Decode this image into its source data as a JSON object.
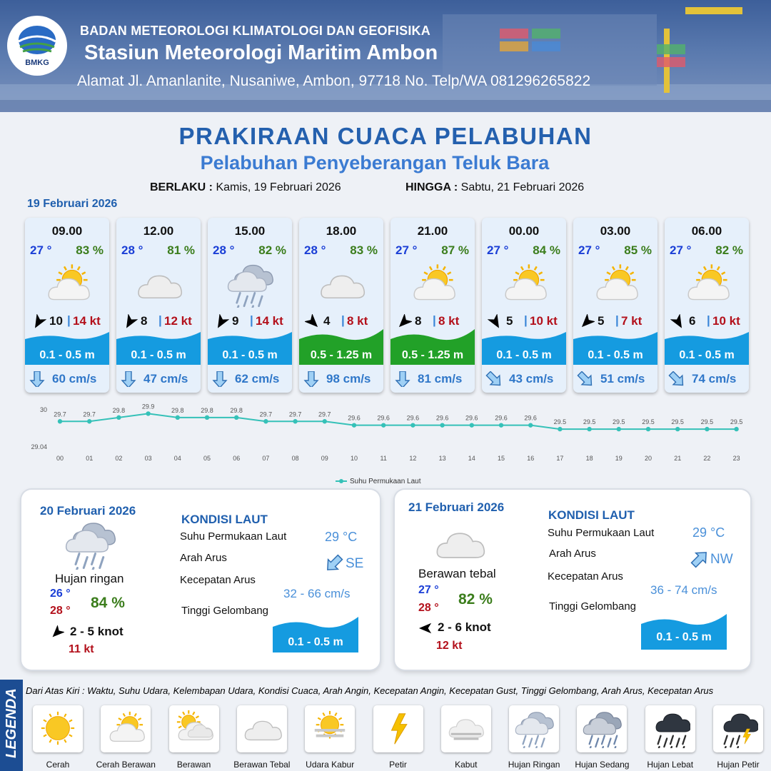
{
  "header": {
    "logo_text": "BMKG",
    "organization": "BADAN METEOROLOGI KLIMATOLOGI DAN GEOFISIKA",
    "station": "Stasiun Meteorologi Maritim Ambon",
    "address": "Alamat Jl. Amanlanite, Nusaniwe, Ambon, 97718   No. Telp/WA  081296265822"
  },
  "title": "PRAKIRAAN CUACA PELABUHAN",
  "subtitle": "Pelabuhan Penyeberangan Teluk Bara",
  "validity": {
    "from_label": "BERLAKU :",
    "from_value": "Kamis, 19 Februari 2026",
    "to_label": "HINGGA :",
    "to_value": "Sabtu, 21 Februari 2026"
  },
  "day1_date": "19 Februari 2026",
  "cards": [
    {
      "time": "09.00",
      "temp": "27 °",
      "humidity": "83 %",
      "icon": "cerah-berawan-icon",
      "wind_dir_deg": 120,
      "wind_speed": "10",
      "gust": "14 kt",
      "wave": "0.1 - 0.5 m",
      "wave_level": "low",
      "current_dir_deg": 90,
      "current_speed": "60 cm/s"
    },
    {
      "time": "12.00",
      "temp": "28 °",
      "humidity": "81 %",
      "icon": "berawan-tebal-icon",
      "wind_dir_deg": 120,
      "wind_speed": "8",
      "gust": "12 kt",
      "wave": "0.1 - 0.5 m",
      "wave_level": "low",
      "current_dir_deg": 90,
      "current_speed": "47 cm/s"
    },
    {
      "time": "15.00",
      "temp": "28 °",
      "humidity": "82 %",
      "icon": "hujan-ringan-icon",
      "wind_dir_deg": 120,
      "wind_speed": "9",
      "gust": "14 kt",
      "wave": "0.1 - 0.5 m",
      "wave_level": "low",
      "current_dir_deg": 90,
      "current_speed": "62 cm/s"
    },
    {
      "time": "18.00",
      "temp": "28 °",
      "humidity": "83 %",
      "icon": "berawan-tebal-icon",
      "wind_dir_deg": 45,
      "wind_speed": "4",
      "gust": "8 kt",
      "wave": "0.5 - 1.25 m",
      "wave_level": "moderate",
      "current_dir_deg": 90,
      "current_speed": "98 cm/s"
    },
    {
      "time": "21.00",
      "temp": "27 °",
      "humidity": "87 %",
      "icon": "cerah-berawan-icon",
      "wind_dir_deg": 135,
      "wind_speed": "8",
      "gust": "8 kt",
      "wave": "0.5 - 1.25 m",
      "wave_level": "moderate",
      "current_dir_deg": 90,
      "current_speed": "81 cm/s"
    },
    {
      "time": "00.00",
      "temp": "27 °",
      "humidity": "84 %",
      "icon": "cerah-berawan-icon",
      "wind_dir_deg": 60,
      "wind_speed": "5",
      "gust": "10 kt",
      "wave": "0.1 - 0.5 m",
      "wave_level": "low",
      "current_dir_deg": 45,
      "current_speed": "43 cm/s"
    },
    {
      "time": "03.00",
      "temp": "27 °",
      "humidity": "85 %",
      "icon": "cerah-berawan-icon",
      "wind_dir_deg": 135,
      "wind_speed": "5",
      "gust": "7 kt",
      "wave": "0.1 - 0.5 m",
      "wave_level": "low",
      "current_dir_deg": 45,
      "current_speed": "51 cm/s"
    },
    {
      "time": "06.00",
      "temp": "27 °",
      "humidity": "82 %",
      "icon": "cerah-berawan-icon",
      "wind_dir_deg": 60,
      "wind_speed": "6",
      "gust": "10 kt",
      "wave": "0.1 - 0.5 m",
      "wave_level": "low",
      "current_dir_deg": 45,
      "current_speed": "74 cm/s"
    }
  ],
  "chart_data": {
    "type": "line",
    "title": "",
    "xlabel": "",
    "ylabel": "",
    "x": [
      "00",
      "01",
      "02",
      "03",
      "04",
      "05",
      "06",
      "07",
      "08",
      "09",
      "10",
      "11",
      "12",
      "13",
      "14",
      "15",
      "16",
      "17",
      "18",
      "19",
      "20",
      "21",
      "22",
      "23"
    ],
    "series": [
      {
        "name": "Suhu Permukaan Laut",
        "values": [
          29.7,
          29.7,
          29.8,
          29.9,
          29.8,
          29.8,
          29.8,
          29.7,
          29.7,
          29.7,
          29.6,
          29.6,
          29.6,
          29.6,
          29.6,
          29.6,
          29.6,
          29.5,
          29.5,
          29.5,
          29.5,
          29.5,
          29.5,
          29.5
        ],
        "labels": [
          "29.7",
          "29.7",
          "29.8",
          "29.9",
          "29.8",
          "29.8",
          "29.8",
          "29.7",
          "29.7",
          "29.7",
          "29.6",
          "29.6",
          "29.6",
          "29.6",
          "29.6",
          "29.6",
          "29.6",
          "29.5",
          "29.5",
          "29.5",
          "29.5",
          "29.5",
          "29.5",
          "29.5"
        ]
      }
    ],
    "y_ticks": [
      "30",
      "29.04"
    ],
    "ylim": [
      29.04,
      30
    ],
    "legend": "bottom",
    "grid": false,
    "color": "#35c1b8"
  },
  "panels": [
    {
      "date": "20 Februari 2026",
      "icon": "hujan-ringan-icon",
      "condition": "Hujan ringan",
      "tmin": "26 °",
      "tmax": "28 °",
      "humidity": "84 %",
      "wind": "2  - 5 knot",
      "wind_dir_deg": 135,
      "gust": "11 kt",
      "ks_title": "KONDISI LAUT",
      "sst_label": "Suhu Permukaan Laut",
      "sst": "29 °C",
      "dir_label": "Arah Arus",
      "dir": "SE",
      "current_dir_deg": 135,
      "spd_label": "Kecepatan Arus",
      "spd": "32 - 66 cm/s",
      "wave_label": "Tinggi Gelombang",
      "wave": "0.1 - 0.5 m"
    },
    {
      "date": "21 Februari 2026",
      "icon": "berawan-tebal-icon",
      "condition": "Berawan tebal",
      "tmin": "27 °",
      "tmax": "28 °",
      "humidity": "82 %",
      "wind": "2  - 6 knot",
      "wind_dir_deg": 180,
      "gust": "12 kt",
      "ks_title": "KONDISI LAUT",
      "sst_label": "Suhu Permukaan Laut",
      "sst": "29 °C",
      "dir_label": "Arah Arus",
      "dir": "NW",
      "current_dir_deg": 315,
      "spd_label": "Kecepatan Arus",
      "spd": "36 - 74 cm/s",
      "wave_label": "Tinggi Gelombang",
      "wave": "0.1 - 0.5 m"
    }
  ],
  "legend": {
    "title": "LEGENDA",
    "description": "Dari Atas Kiri : Waktu, Suhu Udara, Kelembapan Udara, Kondisi Cuaca, Arah Angin, Kecepatan Angin, Kecepatan Gust, Tinggi Gelombang, Arah Arus, Kecepatan Arus",
    "items": [
      {
        "name": "Cerah",
        "icon": "cerah-icon"
      },
      {
        "name": "Cerah Berawan",
        "icon": "cerah-berawan-icon"
      },
      {
        "name": "Berawan",
        "icon": "berawan-icon"
      },
      {
        "name": "Berawan Tebal",
        "icon": "berawan-tebal-icon"
      },
      {
        "name": "Udara Kabur",
        "icon": "udara-kabur-icon"
      },
      {
        "name": "Petir",
        "icon": "petir-icon"
      },
      {
        "name": "Kabut",
        "icon": "kabut-icon"
      },
      {
        "name": "Hujan Ringan",
        "icon": "hujan-ringan-icon"
      },
      {
        "name": "Hujan Sedang",
        "icon": "hujan-sedang-icon"
      },
      {
        "name": "Hujan Lebat",
        "icon": "hujan-lebat-icon"
      },
      {
        "name": "Hujan Petir",
        "icon": "hujan-petir-icon"
      }
    ]
  }
}
